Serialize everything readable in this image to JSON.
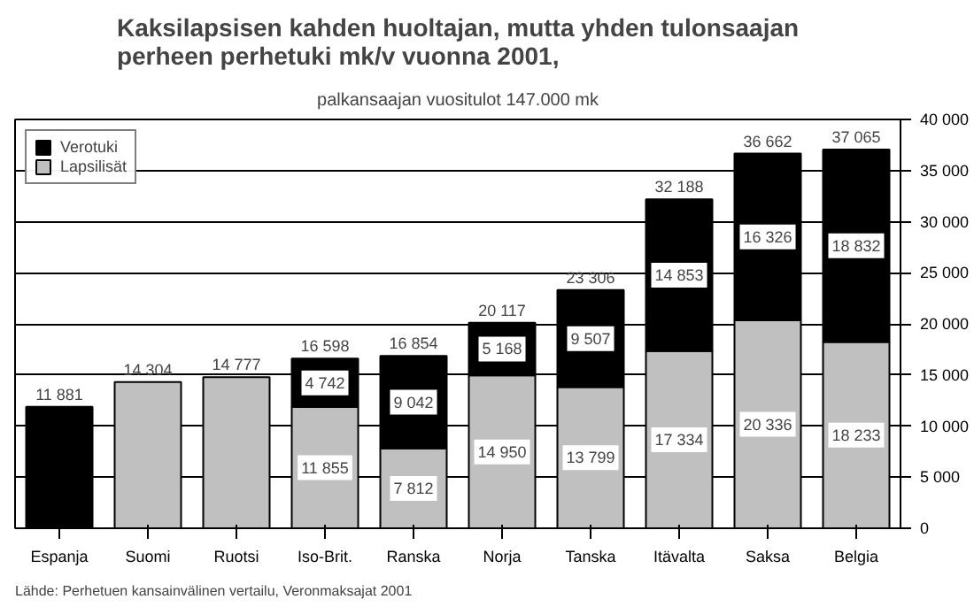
{
  "chart_data": {
    "type": "bar",
    "stacked": true,
    "title": "Kaksilapsisen kahden huoltajan, mutta yhden tulonsaajan perheen perhetuki mk/v vuonna 2001,",
    "subtitle": "palkansaajan vuositulot 147.000 mk",
    "categories": [
      "Espanja",
      "Suomi",
      "Ruotsi",
      "Iso-Brit.",
      "Ranska",
      "Norja",
      "Tanska",
      "Itävalta",
      "Saksa",
      "Belgia"
    ],
    "series": [
      {
        "name": "Lapsilisät",
        "color": "#c0c0c0",
        "values": [
          null,
          14304,
          14777,
          11855,
          7812,
          14950,
          13799,
          17334,
          20336,
          18233
        ],
        "value_labels": [
          null,
          null,
          null,
          "11 855",
          "7 812",
          "14 950",
          "13 799",
          "17 334",
          "20 336",
          "18 233"
        ]
      },
      {
        "name": "Verotuki",
        "color": "#000000",
        "values": [
          11881,
          null,
          null,
          4742,
          9042,
          5168,
          9507,
          14853,
          16326,
          18832
        ],
        "value_labels": [
          null,
          null,
          null,
          "4 742",
          "9 042",
          "5 168",
          "9 507",
          "14 853",
          "16 326",
          "18 832"
        ]
      }
    ],
    "totals": [
      "11 881",
      "14 304",
      "14 777",
      "16 598",
      "16 854",
      "20 117",
      "23 306",
      "32 188",
      "36 662",
      "37 065"
    ],
    "ylim": [
      0,
      40000
    ],
    "yticks": [
      {
        "value": 0,
        "label": "0"
      },
      {
        "value": 5000,
        "label": "5 000"
      },
      {
        "value": 10000,
        "label": "10 000"
      },
      {
        "value": 15000,
        "label": "15 000"
      },
      {
        "value": 20000,
        "label": "20 000"
      },
      {
        "value": 25000,
        "label": "25 000"
      },
      {
        "value": 30000,
        "label": "30 000"
      },
      {
        "value": 35000,
        "label": "35 000"
      },
      {
        "value": 40000,
        "label": "40 000"
      }
    ],
    "grid": "y",
    "legend": "top left",
    "annotations": [
      "Lähde: Perhetuen kansainvälinen vertailu, Veronmaksajat 2001"
    ]
  }
}
